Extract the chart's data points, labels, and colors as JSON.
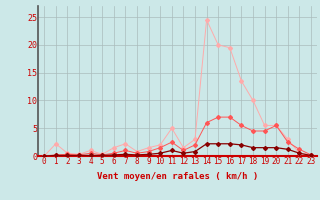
{
  "x": [
    0,
    1,
    2,
    3,
    4,
    5,
    6,
    7,
    8,
    9,
    10,
    11,
    12,
    13,
    14,
    15,
    16,
    17,
    18,
    19,
    20,
    21,
    22,
    23
  ],
  "line1": [
    0.0,
    2.2,
    0.5,
    0.3,
    1.0,
    0.3,
    1.5,
    2.2,
    0.8,
    1.5,
    2.0,
    5.0,
    1.5,
    3.0,
    24.5,
    20.0,
    19.5,
    13.5,
    10.0,
    5.5,
    5.5,
    3.0,
    0.5,
    0.2
  ],
  "line2": [
    0.0,
    0.2,
    0.3,
    0.2,
    0.5,
    0.2,
    0.5,
    1.0,
    0.5,
    0.8,
    1.5,
    2.5,
    1.0,
    2.0,
    6.0,
    7.0,
    7.0,
    5.5,
    4.5,
    4.5,
    5.5,
    2.5,
    1.2,
    0.2
  ],
  "line3": [
    0.0,
    0.1,
    0.1,
    0.1,
    0.1,
    0.1,
    0.2,
    0.3,
    0.2,
    0.3,
    0.5,
    1.0,
    0.5,
    0.8,
    2.2,
    2.2,
    2.2,
    2.0,
    1.5,
    1.5,
    1.5,
    1.2,
    0.5,
    0.1
  ],
  "bg_color": "#cce8e8",
  "grid_color": "#aabcbc",
  "line1_color": "#ffaaaa",
  "line2_color": "#ff5555",
  "line3_color": "#880000",
  "xlabel": "Vent moyen/en rafales ( km/h )",
  "ylim": [
    0,
    27
  ],
  "xlim": [
    -0.5,
    23.5
  ],
  "yticks": [
    0,
    5,
    10,
    15,
    20,
    25
  ],
  "xticks": [
    0,
    1,
    2,
    3,
    4,
    5,
    6,
    7,
    8,
    9,
    10,
    11,
    12,
    13,
    14,
    15,
    16,
    17,
    18,
    19,
    20,
    21,
    22,
    23
  ],
  "tick_color": "#cc0000",
  "label_color": "#cc0000",
  "spine_left_color": "#555555",
  "spine_bottom_color": "#cc0000",
  "tick_fontsize": 5.5,
  "xlabel_fontsize": 6.5
}
